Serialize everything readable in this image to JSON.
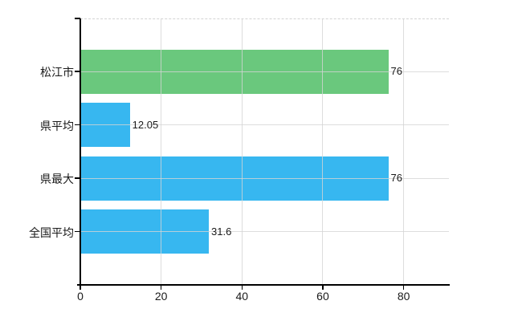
{
  "chart_data": {
    "type": "bar",
    "orientation": "horizontal",
    "title": "",
    "categories": [
      "松江市",
      "県平均",
      "県最大",
      "全国平均"
    ],
    "values": [
      76,
      12.05,
      76,
      31.6
    ],
    "value_labels": [
      "76",
      "12.05",
      "76",
      "31.6"
    ],
    "bar_colors": [
      "#6ac87d",
      "#37b7f0",
      "#37b7f0",
      "#37b7f0"
    ],
    "xticks": [
      0,
      20,
      40,
      60,
      80
    ],
    "xtick_labels": [
      "0",
      "20",
      "40",
      "60",
      "80"
    ],
    "xlim": [
      0,
      91.2
    ],
    "grid": true,
    "legend": false,
    "colors": {
      "background": "#ffffff",
      "axis": "#000000",
      "gridline": "rgba(213,213,213,0.8)",
      "top_dashed_line": "#d4d4d4",
      "text": "#1a1a1a",
      "green_bar": "#6ac87d",
      "blue_bar": "#37b7f0"
    }
  }
}
